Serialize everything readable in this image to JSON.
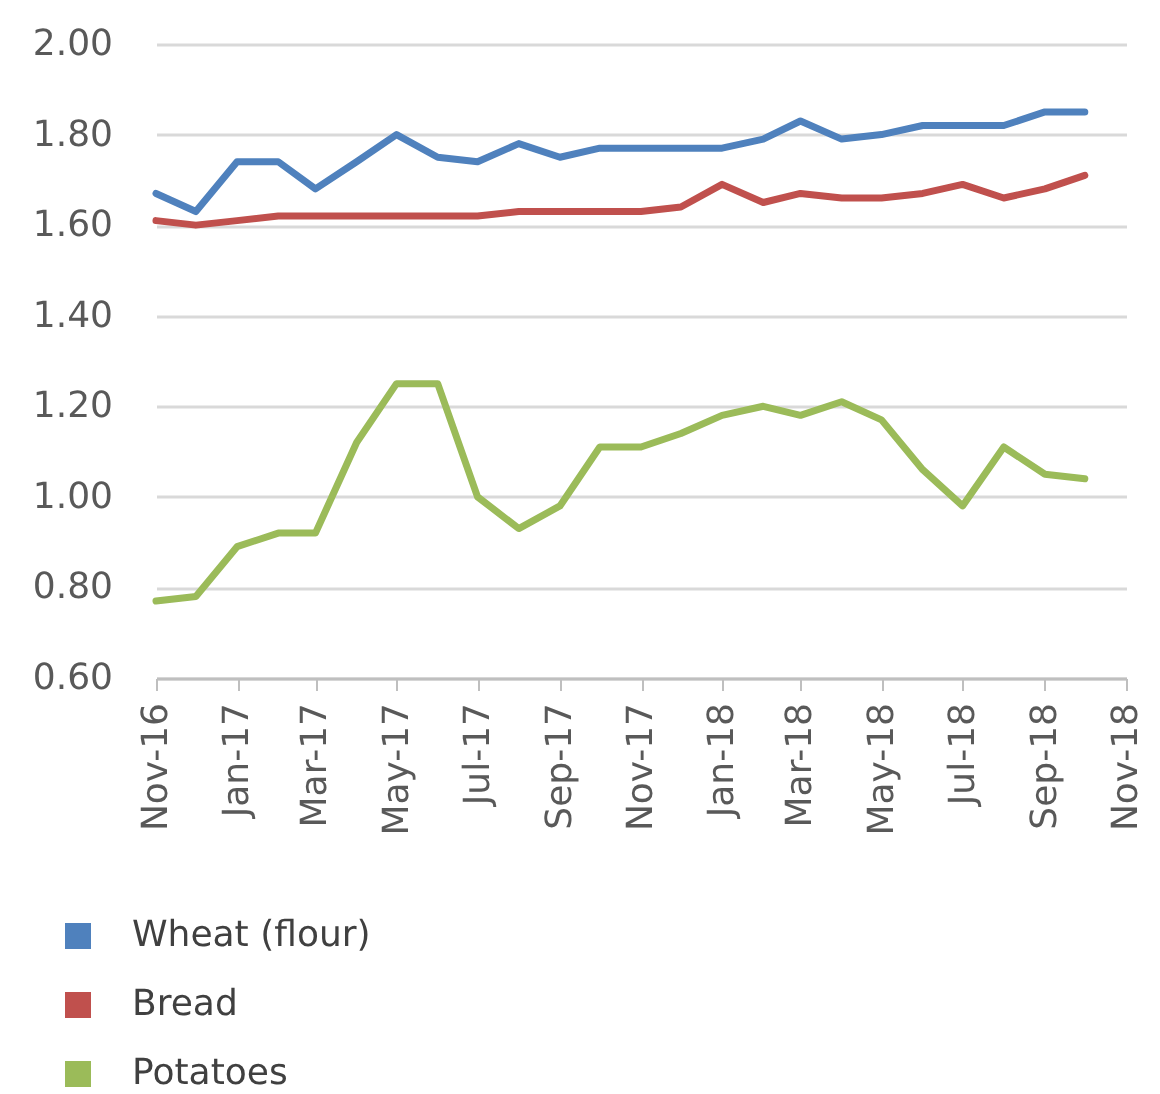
{
  "chart_data": {
    "type": "line",
    "x": [
      "2016-11",
      "2016-12",
      "2017-01",
      "2017-02",
      "2017-03",
      "2017-04",
      "2017-05",
      "2017-06",
      "2017-07",
      "2017-08",
      "2017-09",
      "2017-10",
      "2017-11",
      "2017-12",
      "2018-01",
      "2018-02",
      "2018-03",
      "2018-04",
      "2018-05",
      "2018-06",
      "2018-07",
      "2018-08",
      "2018-09",
      "2018-10"
    ],
    "series": [
      {
        "name": "Wheat (flour)",
        "color": "#4f81bd",
        "values": [
          1.67,
          1.63,
          1.74,
          1.74,
          1.68,
          1.74,
          1.8,
          1.75,
          1.74,
          1.78,
          1.75,
          1.77,
          1.77,
          1.77,
          1.77,
          1.79,
          1.83,
          1.79,
          1.8,
          1.82,
          1.82,
          1.82,
          1.85,
          1.85
        ]
      },
      {
        "name": "Bread",
        "color": "#c0504d",
        "values": [
          1.61,
          1.6,
          1.61,
          1.62,
          1.62,
          1.62,
          1.62,
          1.62,
          1.62,
          1.63,
          1.63,
          1.63,
          1.63,
          1.64,
          1.69,
          1.65,
          1.67,
          1.66,
          1.66,
          1.67,
          1.69,
          1.66,
          1.68,
          1.71
        ]
      },
      {
        "name": "Potatoes",
        "color": "#9bbb59",
        "values": [
          0.77,
          0.78,
          0.89,
          0.92,
          0.92,
          1.12,
          1.25,
          1.25,
          1.0,
          0.93,
          0.98,
          1.11,
          1.11,
          1.14,
          1.18,
          1.2,
          1.18,
          1.21,
          1.17,
          1.06,
          0.98,
          1.11,
          1.05,
          1.04
        ]
      }
    ],
    "xlim": [
      "2016-11",
      "2018-11"
    ],
    "xticks": [
      {
        "value": "2016-11",
        "label": "Nov-16"
      },
      {
        "value": "2017-01",
        "label": "Jan-17"
      },
      {
        "value": "2017-03",
        "label": "Mar-17"
      },
      {
        "value": "2017-05",
        "label": "May-17"
      },
      {
        "value": "2017-07",
        "label": "Jul-17"
      },
      {
        "value": "2017-09",
        "label": "Sep-17"
      },
      {
        "value": "2017-11",
        "label": "Nov-17"
      },
      {
        "value": "2018-01",
        "label": "Jan-18"
      },
      {
        "value": "2018-03",
        "label": "Mar-18"
      },
      {
        "value": "2018-05",
        "label": "May-18"
      },
      {
        "value": "2018-07",
        "label": "Jul-18"
      },
      {
        "value": "2018-09",
        "label": "Sep-18"
      },
      {
        "value": "2018-11",
        "label": "Nov-18"
      }
    ],
    "ylim": [
      0.6,
      2.0
    ],
    "yticks": [
      {
        "value": 0.6,
        "label": "0.60"
      },
      {
        "value": 0.8,
        "label": "0.80"
      },
      {
        "value": 1.0,
        "label": "1.00"
      },
      {
        "value": 1.2,
        "label": "1.20"
      },
      {
        "value": 1.4,
        "label": "1.40"
      },
      {
        "value": 1.6,
        "label": "1.60"
      },
      {
        "value": 1.8,
        "label": "1.80"
      },
      {
        "value": 2.0,
        "label": "2.00"
      }
    ],
    "grid": "y",
    "legend": "bottom"
  }
}
